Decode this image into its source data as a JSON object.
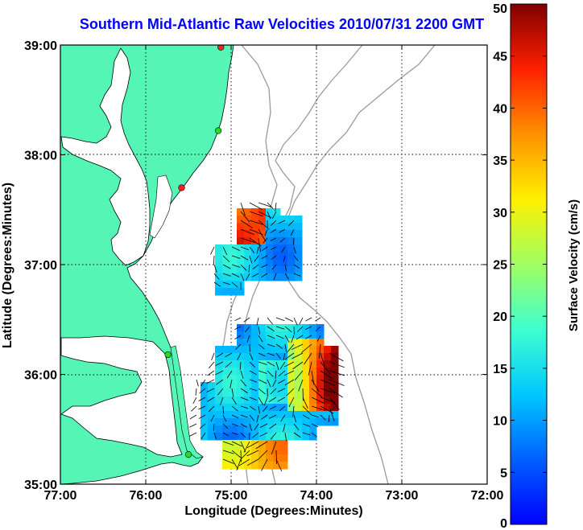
{
  "title": "Southern Mid-Atlantic Raw Velocities 2010/07/31 2200 GMT",
  "axes": {
    "xlabel": "Longitude (Degrees:Minutes)",
    "ylabel": "Latitude (Degrees:Minutes)",
    "x_ticks": [
      "77:00",
      "76:00",
      "75:00",
      "74:00",
      "73:00",
      "72:00"
    ],
    "y_ticks": [
      "39:00",
      "38:00",
      "37:00",
      "36:00",
      "35:00"
    ]
  },
  "colorbar": {
    "label": "Surface Velocity (cm/s)",
    "ticks": [
      "50",
      "45",
      "40",
      "35",
      "30",
      "25",
      "20",
      "15",
      "10",
      "5",
      "0"
    ],
    "range": [
      0,
      50
    ]
  },
  "colors": {
    "land": "#55f5b5",
    "coast": "#000000",
    "bathymetry": "#9a9a9a",
    "grid": "#000000",
    "title": "#0000ff",
    "station_active": "#22dd22",
    "station_inactive": "#ff2020"
  },
  "chart_data": {
    "type": "heatmap",
    "x_range_deg": [
      -77,
      -72
    ],
    "y_range_deg": [
      35,
      39
    ],
    "grid": true,
    "stations": [
      {
        "lon": -75.12,
        "lat": 38.98,
        "status": "inactive"
      },
      {
        "lon": -75.15,
        "lat": 38.22,
        "status": "active"
      },
      {
        "lon": -75.58,
        "lat": 37.7,
        "status": "inactive"
      },
      {
        "lon": -75.74,
        "lat": 36.18,
        "status": "active"
      },
      {
        "lon": -75.5,
        "lat": 35.27,
        "status": "active"
      }
    ]
  }
}
